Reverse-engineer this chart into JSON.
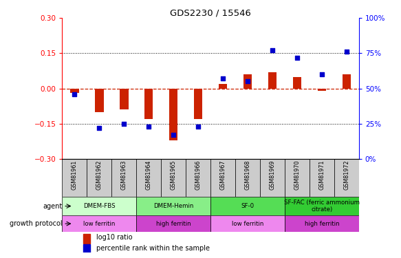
{
  "title": "GDS2230 / 15546",
  "samples": [
    "GSM81961",
    "GSM81962",
    "GSM81963",
    "GSM81964",
    "GSM81965",
    "GSM81966",
    "GSM81967",
    "GSM81968",
    "GSM81969",
    "GSM81970",
    "GSM81971",
    "GSM81972"
  ],
  "log10_ratio": [
    -0.02,
    -0.1,
    -0.09,
    -0.13,
    -0.22,
    -0.13,
    0.02,
    0.06,
    0.07,
    0.05,
    -0.01,
    0.06
  ],
  "percentile_rank": [
    46,
    22,
    25,
    23,
    17,
    23,
    57,
    55,
    77,
    72,
    60,
    76
  ],
  "ylim_left": [
    -0.3,
    0.3
  ],
  "ylim_right": [
    0,
    100
  ],
  "yticks_left": [
    -0.3,
    -0.15,
    0,
    0.15,
    0.3
  ],
  "yticks_right": [
    0,
    25,
    50,
    75,
    100
  ],
  "hlines": [
    0.15,
    -0.15
  ],
  "bar_color": "#cc2200",
  "dot_color": "#0000cc",
  "zero_line_color": "#cc2200",
  "agent_groups": [
    {
      "label": "DMEM-FBS",
      "start": 0,
      "end": 3,
      "color": "#ccffcc"
    },
    {
      "label": "DMEM-Hemin",
      "start": 3,
      "end": 6,
      "color": "#88ee88"
    },
    {
      "label": "SF-0",
      "start": 6,
      "end": 9,
      "color": "#55dd55"
    },
    {
      "label": "SF-FAC (ferric ammonium\ncitrate)",
      "start": 9,
      "end": 12,
      "color": "#33cc33"
    }
  ],
  "growth_groups": [
    {
      "label": "low ferritin",
      "start": 0,
      "end": 3,
      "color": "#ee88ee"
    },
    {
      "label": "high ferritin",
      "start": 3,
      "end": 6,
      "color": "#cc44cc"
    },
    {
      "label": "low ferritin",
      "start": 6,
      "end": 9,
      "color": "#ee88ee"
    },
    {
      "label": "high ferritin",
      "start": 9,
      "end": 12,
      "color": "#cc44cc"
    }
  ],
  "legend_bar_label": "log10 ratio",
  "legend_dot_label": "percentile rank within the sample",
  "agent_label": "agent",
  "growth_label": "growth protocol",
  "bar_width": 0.35,
  "dot_size": 20,
  "sample_box_color": "#cccccc",
  "figsize": [
    5.83,
    3.75
  ],
  "dpi": 100
}
